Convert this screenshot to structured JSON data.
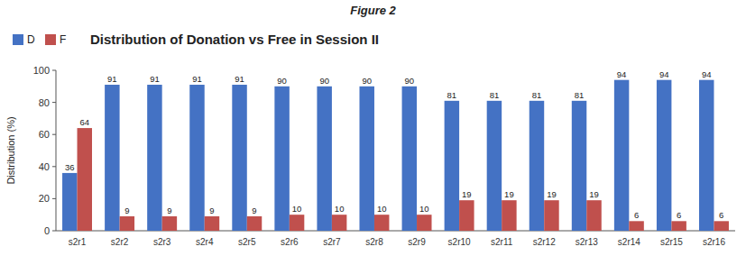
{
  "chart_data": {
    "type": "bar",
    "title": "Figure 2",
    "subtitle": "Distribution of Donation vs Free in Session II",
    "categories": [
      "s2r1",
      "s2r2",
      "s2r3",
      "s2r4",
      "s2r5",
      "s2r6",
      "s2r7",
      "s2r8",
      "s2r9",
      "s2r10",
      "s2r11",
      "s2r12",
      "s2r13",
      "s2r14",
      "s2r15",
      "s2r16"
    ],
    "series": [
      {
        "name": "D",
        "color": "#4472C4",
        "values": [
          36,
          91,
          91,
          91,
          91,
          90,
          90,
          90,
          90,
          81,
          81,
          81,
          81,
          94,
          94,
          94
        ]
      },
      {
        "name": "F",
        "color": "#C0504D",
        "values": [
          64,
          9,
          9,
          9,
          9,
          10,
          10,
          10,
          10,
          19,
          19,
          19,
          19,
          6,
          6,
          6
        ]
      }
    ],
    "ylabel": "Distribution (%)",
    "ylim": [
      0,
      100
    ],
    "yticks": [
      0,
      20,
      40,
      60,
      80,
      100
    ],
    "grid": false,
    "legend": "upper left",
    "data_labels": true
  }
}
